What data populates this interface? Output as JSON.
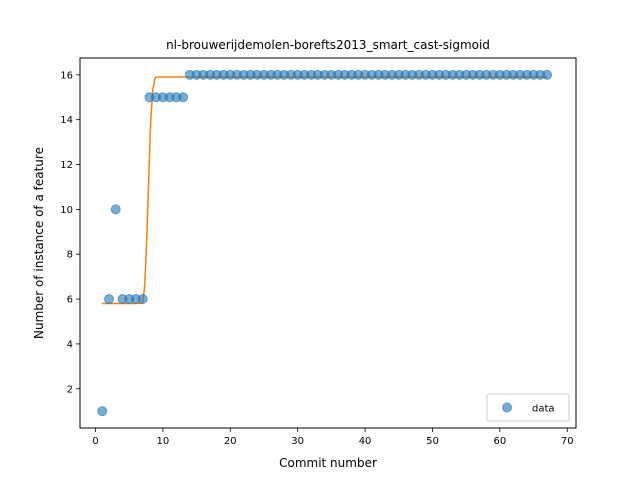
{
  "chart_data": {
    "type": "scatter",
    "title": "nl-brouwerijdemolen-borefts2013_smart_cast-sigmoid",
    "xlabel": "Commit number",
    "ylabel": "Number of instance of a feature",
    "xlim": [
      -2.3,
      71.3
    ],
    "ylim": [
      0.25,
      16.75
    ],
    "xticks": [
      0,
      10,
      20,
      30,
      40,
      50,
      60,
      70
    ],
    "yticks": [
      2,
      4,
      6,
      8,
      10,
      12,
      14,
      16
    ],
    "grid": false,
    "legend_position": "lower-right",
    "series": [
      {
        "name": "data",
        "kind": "scatter",
        "color": "#1f77b4",
        "x": [
          1,
          2,
          3,
          4,
          5,
          6,
          7,
          8,
          9,
          10,
          11,
          12,
          13,
          14,
          15,
          16,
          17,
          18,
          19,
          20,
          21,
          22,
          23,
          24,
          25,
          26,
          27,
          28,
          29,
          30,
          31,
          32,
          33,
          34,
          35,
          36,
          37,
          38,
          39,
          40,
          41,
          42,
          43,
          44,
          45,
          46,
          47,
          48,
          49,
          50,
          51,
          52,
          53,
          54,
          55,
          56,
          57,
          58,
          59,
          60,
          61,
          62,
          63,
          64,
          65,
          66,
          67
        ],
        "y": [
          1,
          6,
          10,
          6,
          6,
          6,
          6,
          15,
          15,
          15,
          15,
          15,
          15,
          16,
          16,
          16,
          16,
          16,
          16,
          16,
          16,
          16,
          16,
          16,
          16,
          16,
          16,
          16,
          16,
          16,
          16,
          16,
          16,
          16,
          16,
          16,
          16,
          16,
          16,
          16,
          16,
          16,
          16,
          16,
          16,
          16,
          16,
          16,
          16,
          16,
          16,
          16,
          16,
          16,
          16,
          16,
          16,
          16,
          16,
          16,
          16,
          16,
          16,
          16,
          16,
          16,
          16
        ]
      },
      {
        "kind": "line",
        "color": "#ff7f0e",
        "x": [
          1,
          2,
          3,
          4,
          5,
          6,
          7,
          7.3,
          7.6,
          7.9,
          8.2,
          8.5,
          8.8,
          9,
          10,
          11,
          12,
          13,
          14,
          15,
          16,
          17,
          18,
          19,
          20,
          21,
          22,
          23,
          24,
          25,
          26,
          27,
          28,
          29,
          30,
          31,
          32,
          33,
          34,
          35,
          36,
          37,
          38,
          39,
          40,
          41,
          42,
          43,
          44,
          45,
          46,
          47,
          48,
          49,
          50,
          51,
          52,
          53,
          54,
          55,
          56,
          57,
          58,
          59,
          60,
          61,
          62,
          63,
          64,
          65,
          66,
          67
        ],
        "y": [
          5.8,
          5.8,
          5.8,
          5.8,
          5.8,
          5.8,
          5.82,
          6.6,
          8.6,
          11.4,
          14.0,
          15.3,
          15.82,
          15.9,
          15.9,
          15.9,
          15.9,
          15.9,
          15.9,
          15.9,
          15.9,
          15.9,
          15.9,
          15.9,
          15.9,
          15.9,
          15.9,
          15.9,
          15.9,
          15.9,
          15.9,
          15.9,
          15.9,
          15.9,
          15.9,
          15.9,
          15.9,
          15.9,
          15.9,
          15.9,
          15.9,
          15.9,
          15.9,
          15.9,
          15.9,
          15.9,
          15.9,
          15.9,
          15.9,
          15.9,
          15.9,
          15.9,
          15.9,
          15.9,
          15.9,
          15.9,
          15.9,
          15.9,
          15.9,
          15.9,
          15.9,
          15.9,
          15.9,
          15.9,
          15.9,
          15.9,
          15.9,
          15.9,
          15.9,
          15.9,
          15.9,
          15.9
        ]
      }
    ]
  }
}
